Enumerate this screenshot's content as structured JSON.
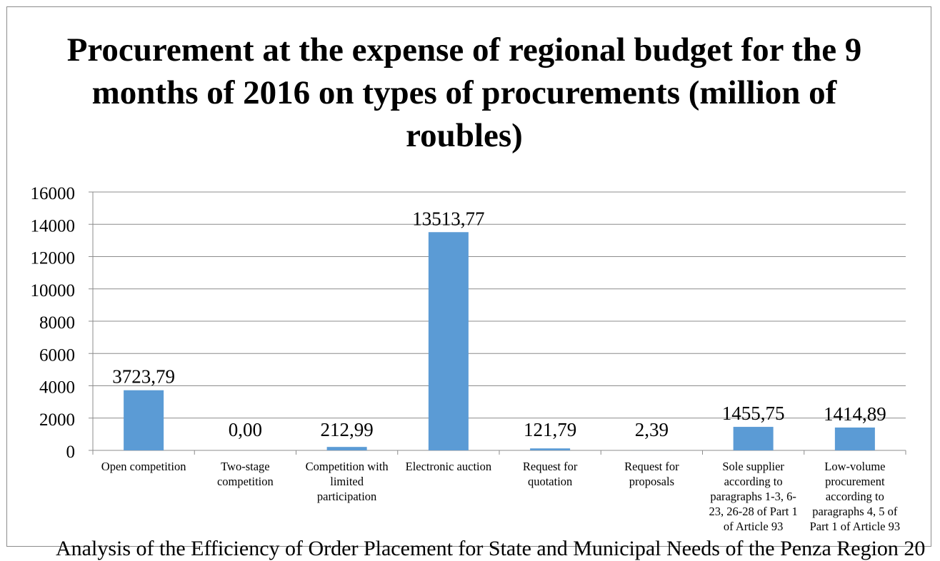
{
  "chart_data": {
    "type": "bar",
    "title": "Procurement at the expense of regional budget for the 9 months of 2016 on types of procurements (million of roubles)",
    "categories": [
      [
        "Open competition"
      ],
      [
        "Two-stage",
        "competition"
      ],
      [
        "Competition with",
        "limited",
        "participation"
      ],
      [
        "Electronic auction"
      ],
      [
        "Request for",
        "quotation"
      ],
      [
        "Request for",
        "proposals"
      ],
      [
        "Sole supplier",
        "according to",
        "paragraphs 1-3, 6-",
        "23, 26-28 of Part 1",
        "of Article 93"
      ],
      [
        "Low-volume",
        "procurement",
        "according to",
        "paragraphs 4, 5 of",
        "Part 1 of Article 93"
      ]
    ],
    "values": [
      3723.79,
      0.0,
      212.99,
      13513.77,
      121.79,
      2.39,
      1455.75,
      1414.89
    ],
    "data_labels": [
      "3723,79",
      "0,00",
      "212,99",
      "13513,77",
      "121,79",
      "2,39",
      "1455,75",
      "1414,89"
    ],
    "ylim": [
      0,
      16000
    ],
    "yticks": [
      0,
      2000,
      4000,
      6000,
      8000,
      10000,
      12000,
      14000,
      16000
    ],
    "grid": true,
    "legend": "none",
    "bar_color": "#5b9bd5",
    "grid_color": "#8c8c8c"
  },
  "footer_text": "Analysis of the Efficiency of Order Placement for State and Municipal Needs of the Penza Region 20"
}
